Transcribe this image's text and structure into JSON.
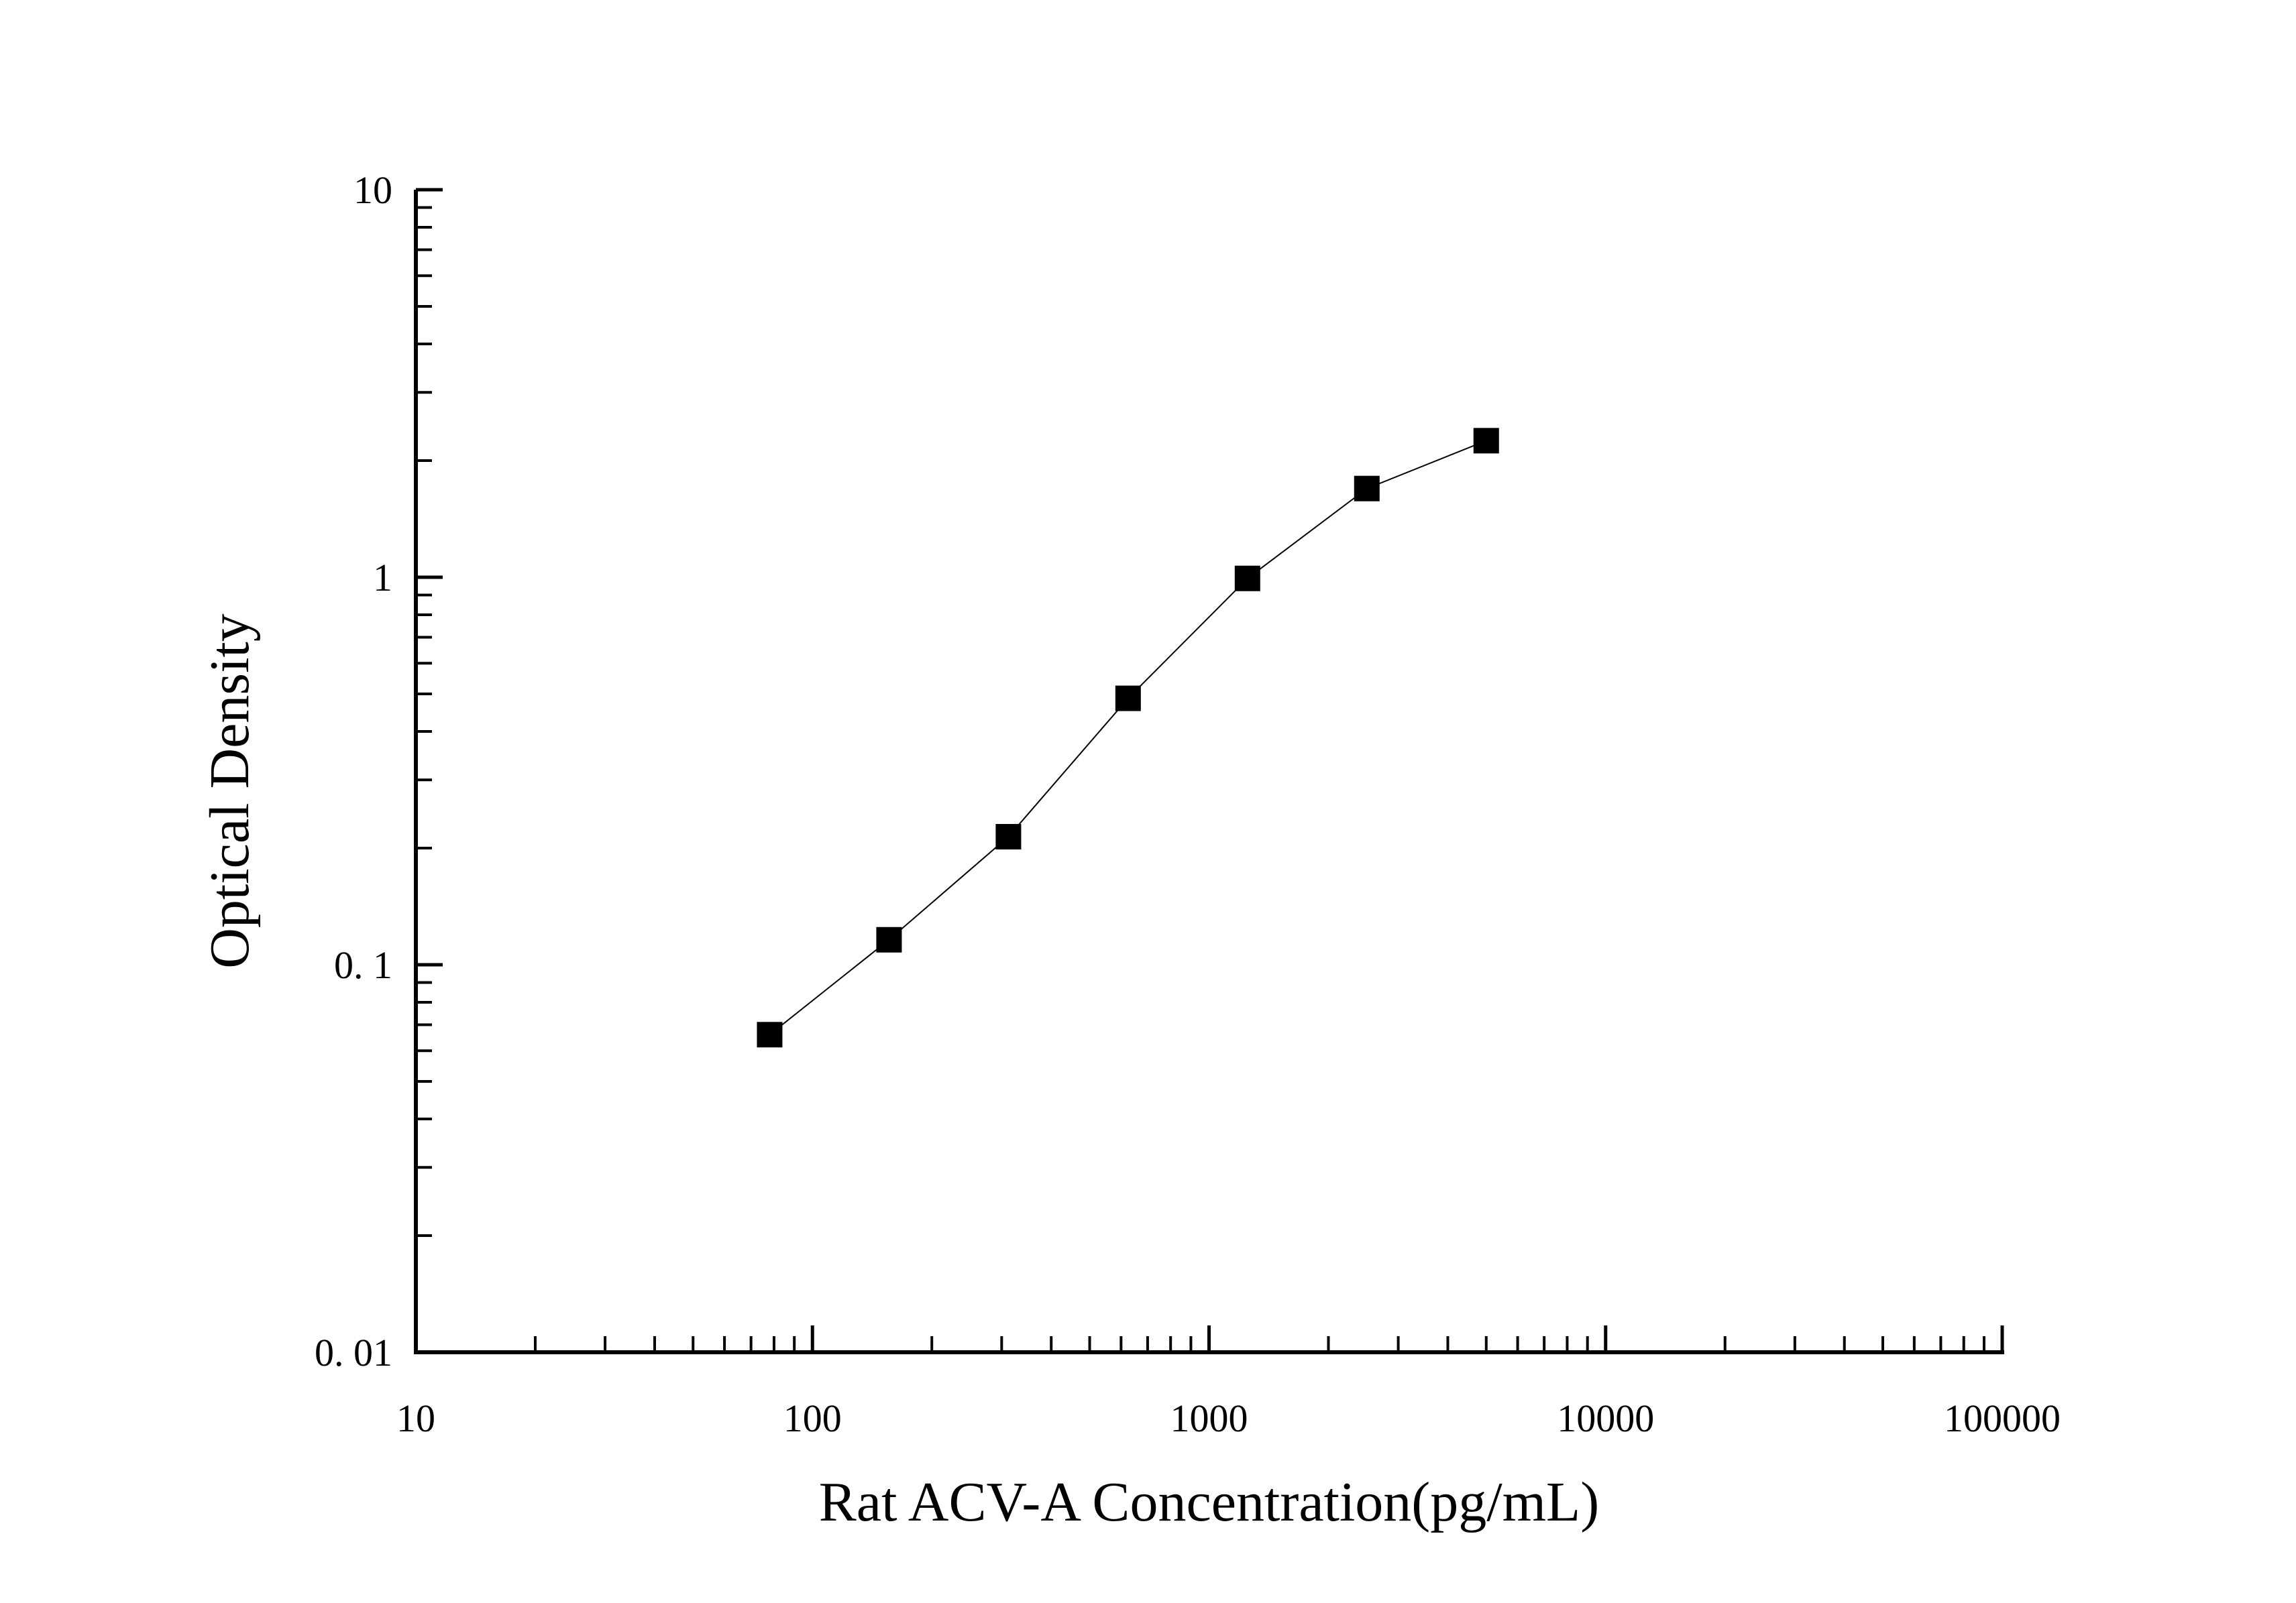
{
  "chart_data": {
    "type": "line",
    "title": "",
    "xlabel": "Rat ACV-A Concentration(pg/mL)",
    "ylabel": "Optical Density",
    "x_scale": "log",
    "y_scale": "log",
    "xlim": [
      10,
      100000
    ],
    "ylim": [
      0.01,
      10
    ],
    "x_ticks": [
      {
        "value": 10,
        "label": "10"
      },
      {
        "value": 100,
        "label": "100"
      },
      {
        "value": 1000,
        "label": "1000"
      },
      {
        "value": 10000,
        "label": "10000"
      },
      {
        "value": 100000,
        "label": "100000"
      }
    ],
    "y_ticks": [
      {
        "value": 0.01,
        "label": "0. 01"
      },
      {
        "value": 0.1,
        "label": "0. 1"
      },
      {
        "value": 1,
        "label": "1"
      },
      {
        "value": 10,
        "label": "10"
      }
    ],
    "grid": false,
    "legend": "none",
    "marker": "square",
    "series_color": "#000000",
    "series": [
      {
        "x": [
          78,
          156,
          312,
          625,
          1250,
          2500,
          5000
        ],
        "y": [
          0.066,
          0.116,
          0.214,
          0.487,
          0.993,
          1.694,
          2.251
        ]
      }
    ]
  }
}
